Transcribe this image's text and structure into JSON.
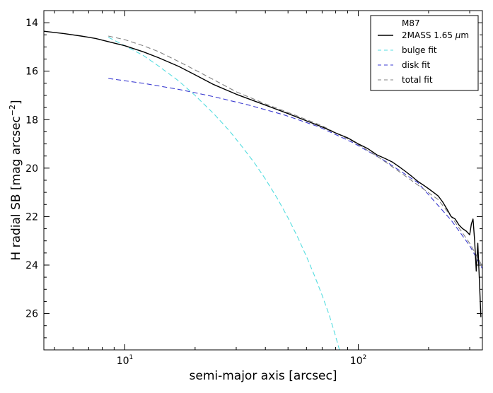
{
  "chart_data": {
    "type": "line",
    "title": "",
    "xlabel": "semi-major axis [arcsec]",
    "ylabel": "H radial SB [mag arcsec",
    "ylabel_superscript": "−2",
    "ylabel_suffix": "]",
    "xscale": "log",
    "xlim": [
      4.5,
      340
    ],
    "ylim": [
      27.5,
      13.5
    ],
    "y_inverted": true,
    "grid": false,
    "xticks": [
      {
        "value": 10,
        "base": "10",
        "exp": "1"
      },
      {
        "value": 100,
        "base": "10",
        "exp": "2"
      }
    ],
    "yticks": [
      14,
      16,
      18,
      20,
      22,
      24,
      26
    ],
    "legend": {
      "position": "top-right",
      "title": "M87",
      "entries": [
        {
          "series": "observed",
          "label_main": "2MASS 1.65 ",
          "label_unit_italic": "μ",
          "label_unit": "m"
        },
        {
          "series": "bulge",
          "label_main": "bulge fit"
        },
        {
          "series": "disk",
          "label_main": "disk fit"
        },
        {
          "series": "total",
          "label_main": "total fit"
        }
      ]
    },
    "series": [
      {
        "name": "2MASS 1.65 μm",
        "key": "observed",
        "color": "#000000",
        "dash": "solid",
        "x": [
          4.5,
          5.5,
          6.5,
          7.5,
          8.5,
          10,
          12,
          14,
          17,
          20,
          24,
          30,
          40,
          50,
          60,
          70,
          80,
          90,
          100,
          110,
          120,
          130,
          140,
          150,
          160,
          170,
          180,
          190,
          200,
          210,
          220,
          230,
          240,
          250,
          260,
          270,
          280,
          290,
          300,
          305,
          310,
          315,
          320,
          325,
          330,
          335
        ],
        "y": [
          14.35,
          14.45,
          14.55,
          14.65,
          14.78,
          14.95,
          15.2,
          15.45,
          15.8,
          16.15,
          16.55,
          16.95,
          17.4,
          17.75,
          18.05,
          18.3,
          18.55,
          18.75,
          19.0,
          19.2,
          19.45,
          19.6,
          19.75,
          19.95,
          20.15,
          20.35,
          20.55,
          20.7,
          20.85,
          21.0,
          21.15,
          21.4,
          21.7,
          22.0,
          22.1,
          22.35,
          22.5,
          22.6,
          22.75,
          22.3,
          22.1,
          23.0,
          24.25,
          23.1,
          24.6,
          26.15
        ]
      },
      {
        "name": "bulge fit",
        "key": "bulge",
        "color": "#55dde0",
        "dash": "dashed",
        "x": [
          8.5,
          10,
          12,
          14,
          17,
          20,
          24,
          28,
          32,
          36,
          40,
          45,
          50,
          55,
          60,
          65,
          70,
          75,
          80,
          85
        ],
        "y": [
          14.6,
          14.95,
          15.35,
          15.8,
          16.4,
          17.0,
          17.75,
          18.45,
          19.15,
          19.8,
          20.45,
          21.25,
          22.05,
          22.85,
          23.65,
          24.45,
          25.25,
          26.05,
          26.95,
          27.85
        ]
      },
      {
        "name": "disk fit",
        "key": "disk",
        "color": "#3a3ad0",
        "dash": "dashed",
        "x": [
          8.5,
          12,
          17,
          24,
          34,
          48,
          68,
          95,
          130,
          180,
          250,
          300,
          340
        ],
        "y": [
          16.3,
          16.5,
          16.75,
          17.05,
          17.4,
          17.8,
          18.3,
          18.95,
          19.7,
          20.6,
          22.15,
          23.2,
          24.15
        ]
      },
      {
        "name": "total fit",
        "key": "total",
        "color": "#808080",
        "dash": "dashed",
        "x": [
          8.5,
          10,
          12,
          14,
          17,
          20,
          24,
          30,
          40,
          50,
          60,
          70,
          80,
          95,
          120,
          150,
          180,
          220,
          250,
          300,
          340
        ],
        "y": [
          14.55,
          14.7,
          14.95,
          15.2,
          15.6,
          15.95,
          16.35,
          16.85,
          17.35,
          17.7,
          18.0,
          18.25,
          18.55,
          18.9,
          19.5,
          20.15,
          20.7,
          21.3,
          22.0,
          23.1,
          24.05
        ]
      }
    ]
  }
}
